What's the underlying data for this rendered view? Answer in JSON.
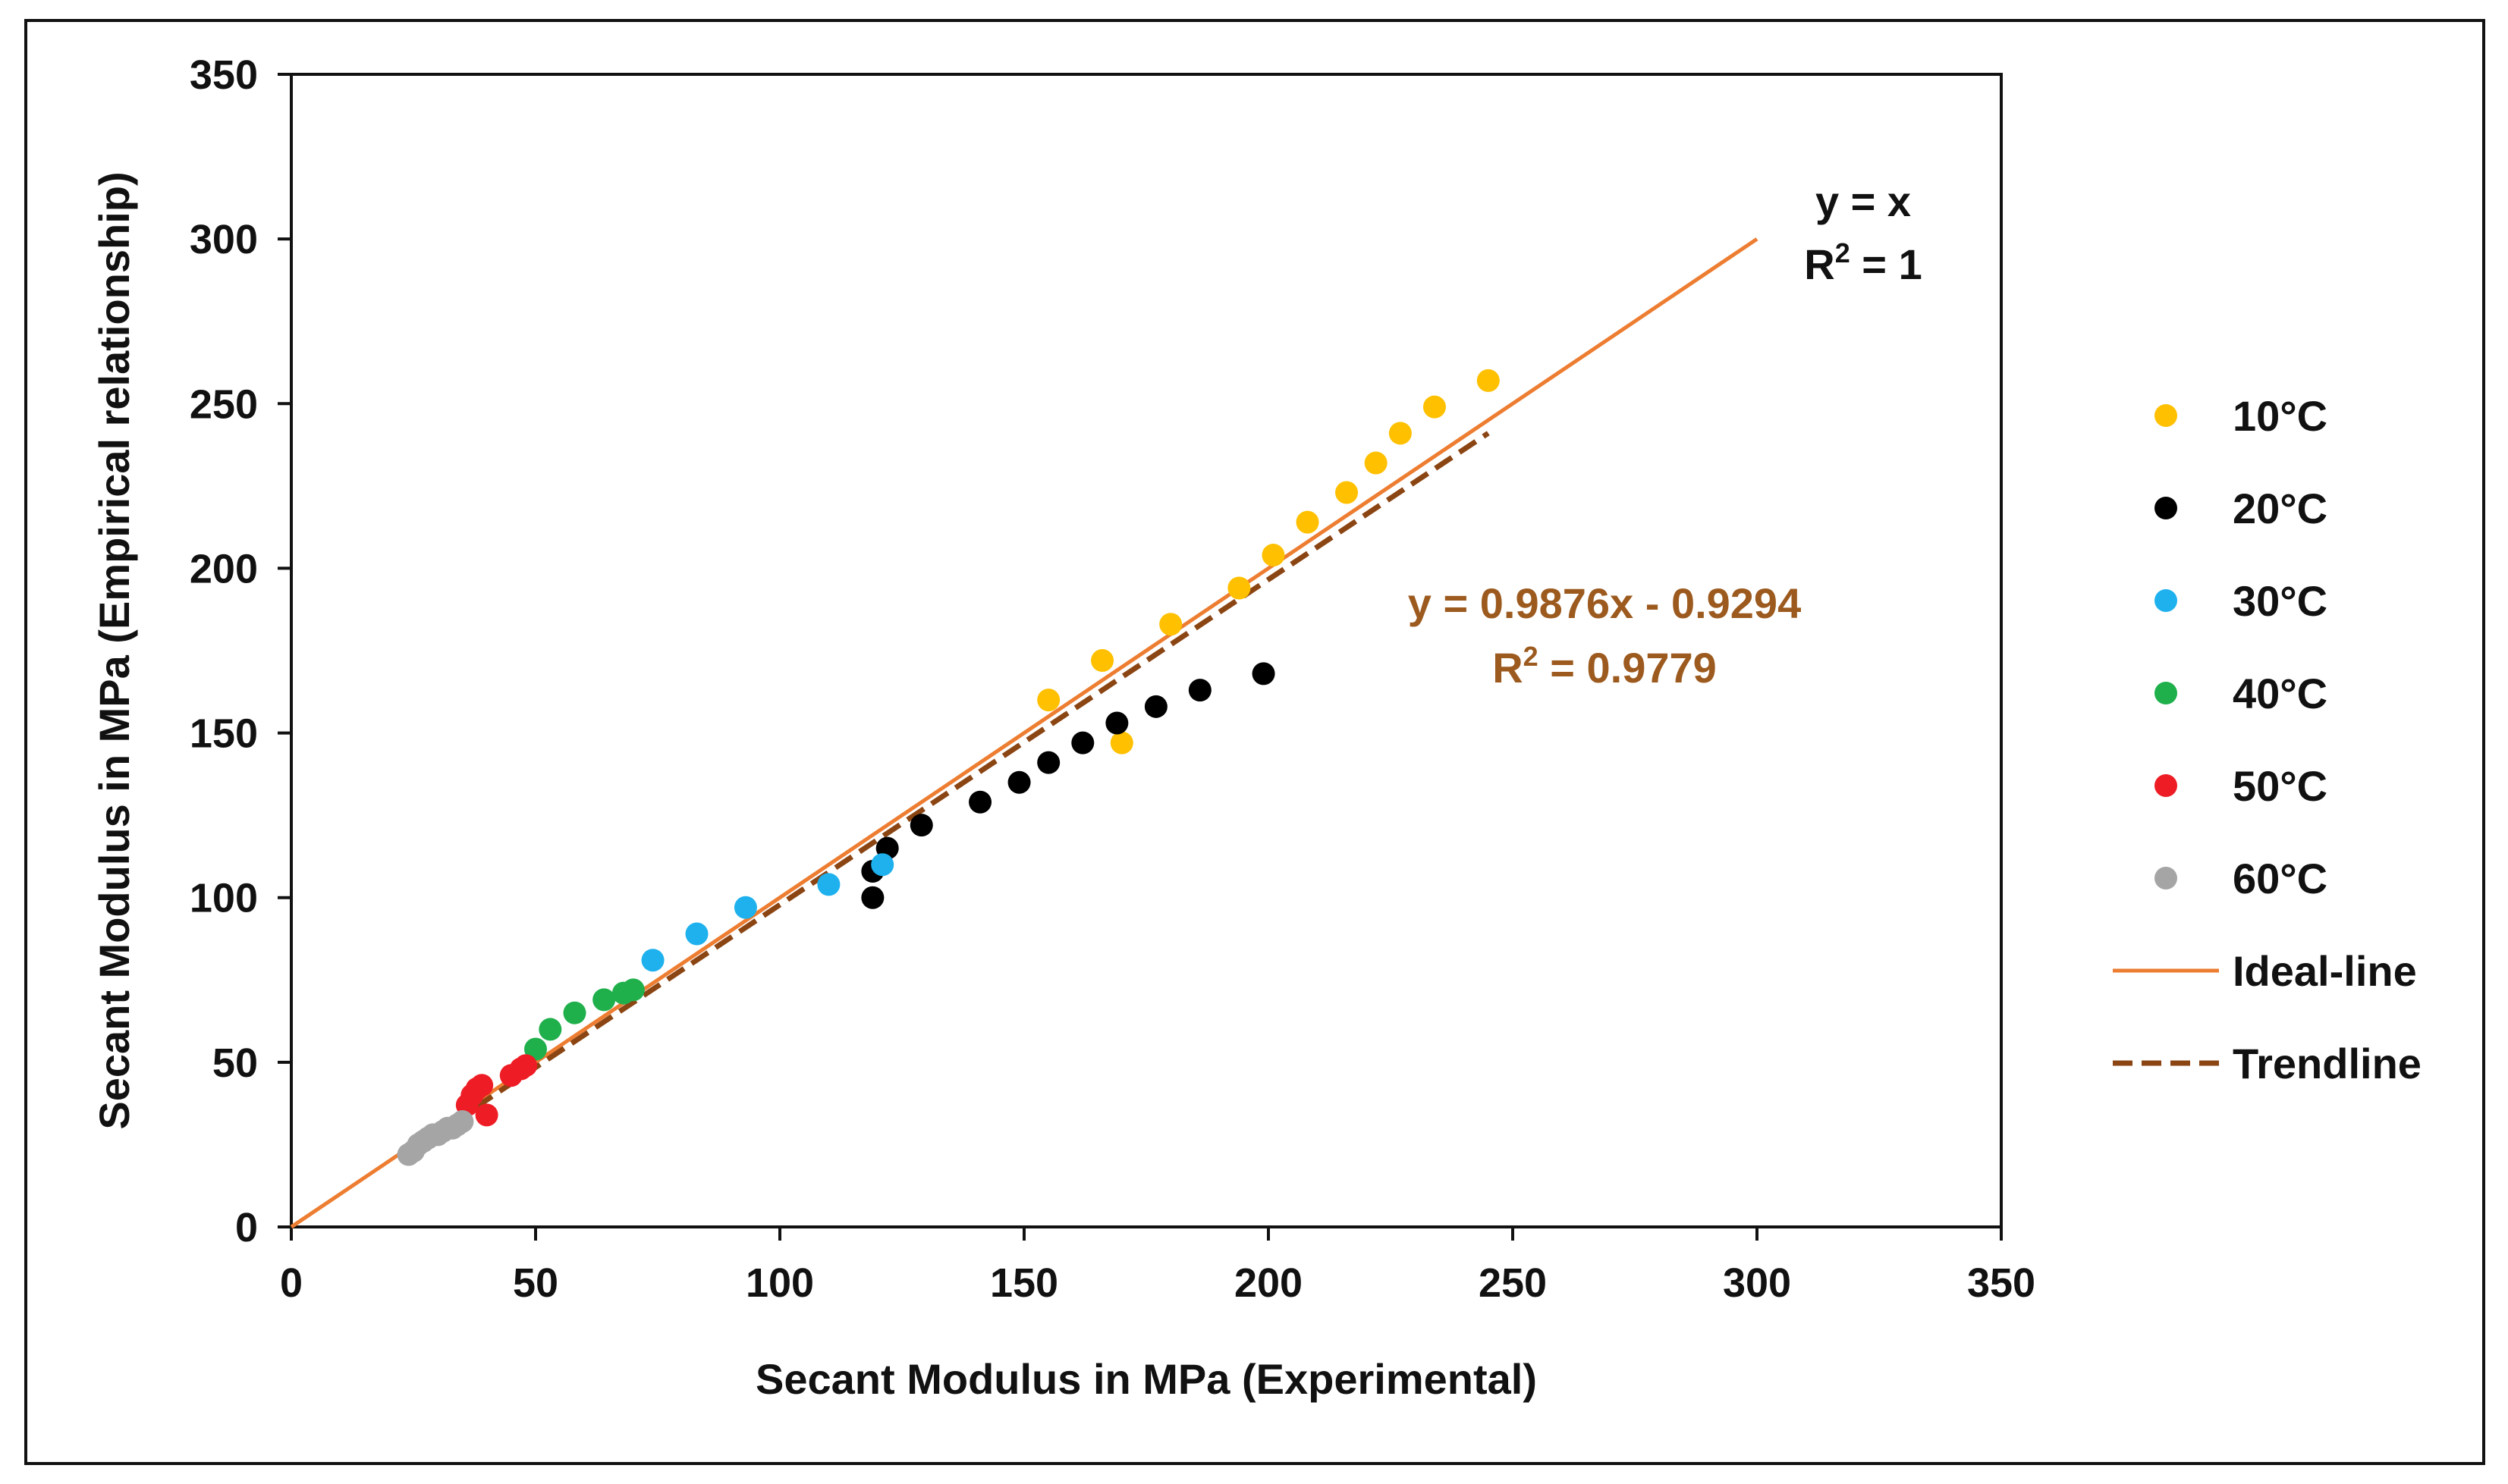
{
  "chart_data": {
    "type": "scatter",
    "title": "",
    "xlabel": "Secant Modulus in MPa (Experimental)",
    "ylabel": "Secant Modulus in MPa (Empirical relationship)",
    "xlim": [
      0,
      350
    ],
    "ylim": [
      0,
      350
    ],
    "xticks": [
      0,
      50,
      100,
      150,
      200,
      250,
      300,
      350
    ],
    "yticks": [
      0,
      50,
      100,
      150,
      200,
      250,
      300,
      350
    ],
    "grid": false,
    "legend_position": "right",
    "series": [
      {
        "name": "10°C",
        "color": "#FFC000",
        "points": [
          [
            155,
            160
          ],
          [
            166,
            172
          ],
          [
            170,
            147
          ],
          [
            180,
            183
          ],
          [
            194,
            194
          ],
          [
            201,
            204
          ],
          [
            208,
            214
          ],
          [
            216,
            223
          ],
          [
            222,
            232
          ],
          [
            227,
            241
          ],
          [
            234,
            249
          ],
          [
            245,
            257
          ]
        ]
      },
      {
        "name": "20°C",
        "color": "#000000",
        "points": [
          [
            119,
            108
          ],
          [
            119,
            100
          ],
          [
            122,
            115
          ],
          [
            129,
            122
          ],
          [
            141,
            129
          ],
          [
            149,
            135
          ],
          [
            155,
            141
          ],
          [
            162,
            147
          ],
          [
            169,
            153
          ],
          [
            177,
            158
          ],
          [
            186,
            163
          ],
          [
            199,
            168
          ]
        ]
      },
      {
        "name": "30°C",
        "color": "#1EB1EE",
        "points": [
          [
            74,
            81
          ],
          [
            83,
            89
          ],
          [
            93,
            97
          ],
          [
            110,
            104
          ],
          [
            121,
            110
          ]
        ]
      },
      {
        "name": "40°C",
        "color": "#1FB04C",
        "points": [
          [
            50,
            54
          ],
          [
            53,
            60
          ],
          [
            58,
            65
          ],
          [
            64,
            69
          ],
          [
            68,
            71
          ],
          [
            70,
            72
          ]
        ]
      },
      {
        "name": "50°C",
        "color": "#EE1C24",
        "points": [
          [
            36,
            37
          ],
          [
            37,
            40
          ],
          [
            38,
            42
          ],
          [
            39,
            43
          ],
          [
            40,
            34
          ],
          [
            45,
            46
          ],
          [
            47,
            48
          ],
          [
            48,
            49
          ]
        ]
      },
      {
        "name": "60°C",
        "color": "#A5A5A5",
        "points": [
          [
            24,
            22
          ],
          [
            25,
            23
          ],
          [
            26,
            25
          ],
          [
            27,
            26
          ],
          [
            28,
            27
          ],
          [
            29,
            28
          ],
          [
            30,
            28
          ],
          [
            31,
            29
          ],
          [
            32,
            30
          ],
          [
            33,
            30
          ],
          [
            34,
            31
          ],
          [
            35,
            32
          ]
        ]
      }
    ],
    "lines": [
      {
        "name": "Ideal-line",
        "color": "#ED7D31",
        "style": "solid",
        "slope": 1,
        "intercept": 0,
        "x_range": [
          0,
          300
        ]
      },
      {
        "name": "Trendline",
        "color": "#8B4513",
        "style": "dashed",
        "slope": 0.9876,
        "intercept": -0.9294,
        "x_range": [
          23,
          245
        ]
      }
    ],
    "annotations": {
      "ideal_equation": "y = x",
      "ideal_r2_prefix": "R",
      "ideal_r2_sup": "2",
      "ideal_r2_value": " = 1",
      "trend_equation": "y = 0.9876x - 0.9294",
      "trend_r2_prefix": "R",
      "trend_r2_sup": "2",
      "trend_r2_value": " = 0.9779",
      "trend_color": "#9C5A1E"
    }
  }
}
